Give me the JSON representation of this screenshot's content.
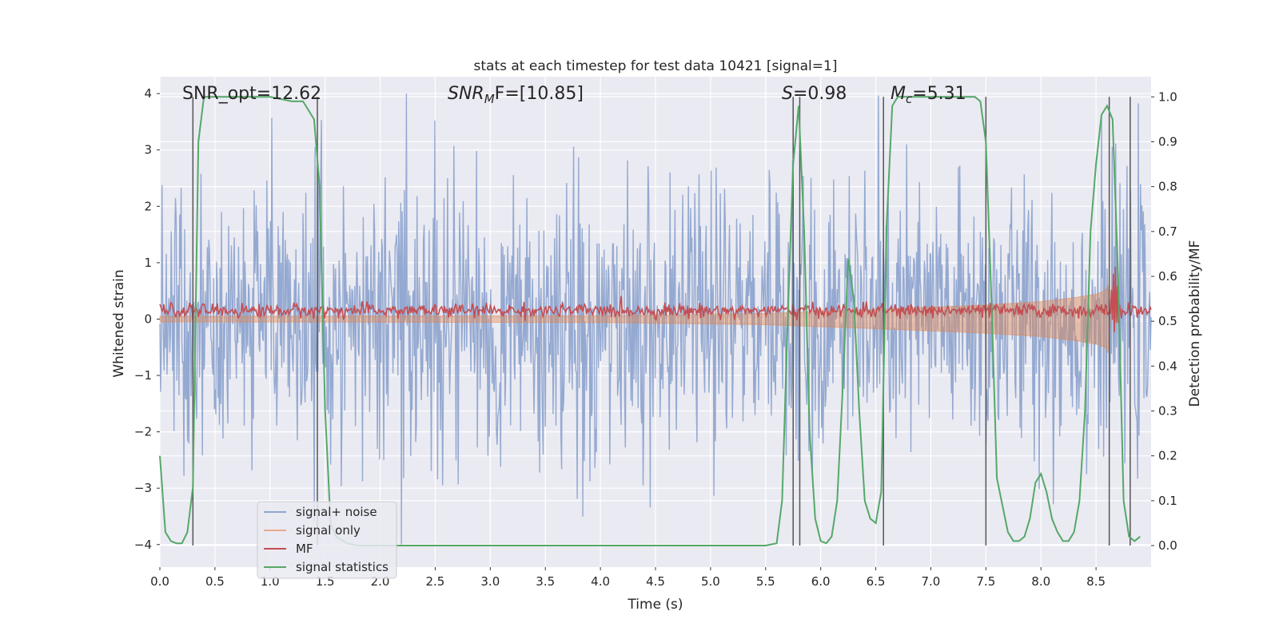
{
  "chart_data": {
    "type": "line",
    "title": "stats at each timestep for test data 10421 [signal=1]",
    "xlabel": "Time (s)",
    "ylabel": "Whitened strain",
    "ylabel_right": "Detection probability/MF",
    "xlim": [
      0.0,
      9.0
    ],
    "ylim": [
      -4.4,
      4.3
    ],
    "ylim_right": [
      -0.048,
      1.045
    ],
    "xticks": [
      "0.0",
      "0.5",
      "1.0",
      "1.5",
      "2.0",
      "2.5",
      "3.0",
      "3.5",
      "4.0",
      "4.5",
      "5.0",
      "5.5",
      "6.0",
      "6.5",
      "7.0",
      "7.5",
      "8.0",
      "8.5"
    ],
    "xtick_values": [
      0,
      0.5,
      1,
      1.5,
      2,
      2.5,
      3,
      3.5,
      4,
      4.5,
      5,
      5.5,
      6,
      6.5,
      7,
      7.5,
      8,
      8.5
    ],
    "yticks": [
      "−4",
      "−3",
      "−2",
      "−1",
      "0",
      "1",
      "2",
      "3",
      "4"
    ],
    "ytick_values": [
      -4,
      -3,
      -2,
      -1,
      0,
      1,
      2,
      3,
      4
    ],
    "yticks_right": [
      "0.0",
      "0.1",
      "0.2",
      "0.3",
      "0.4",
      "0.5",
      "0.6",
      "0.7",
      "0.8",
      "0.9",
      "1.0"
    ],
    "ytick_right_values": [
      0,
      0.1,
      0.2,
      0.3,
      0.4,
      0.5,
      0.6,
      0.7,
      0.8,
      0.9,
      1.0
    ],
    "annotations": {
      "snr_opt": "SNR_opt=12.62",
      "snr_mf_base": "SNR",
      "snr_mf_sub": "M",
      "snr_mf_tail": "F=[10.85]",
      "s_base": "S",
      "s_tail": "=0.98",
      "mc_base": "M",
      "mc_sub": "c",
      "mc_tail": "=5.31"
    },
    "vertical_lines": [
      0.3,
      1.43,
      5.75,
      5.81,
      6.57,
      7.5,
      8.62,
      8.81
    ],
    "legend": {
      "placement": "lower-left",
      "entries": [
        "signal+ noise",
        "signal only",
        "MF",
        "signal statistics"
      ]
    },
    "noise_envelope": {
      "typical_abs": 1.6,
      "max_abs": 4.0,
      "samples": 1400
    },
    "signal_only_envelope": {
      "t": [
        0,
        4,
        5.5,
        6.5,
        7.5,
        8.0,
        8.3,
        8.5,
        8.6,
        8.62,
        8.63
      ],
      "amp": [
        0.05,
        0.06,
        0.1,
        0.17,
        0.25,
        0.31,
        0.38,
        0.44,
        0.52,
        0.7,
        0.0
      ]
    },
    "mf_baseline": 0.15,
    "mf_peak": {
      "t": 8.67,
      "value": 1.0
    },
    "series": [
      {
        "name": "signal statistics",
        "axis": "right",
        "t": [
          0.0,
          0.05,
          0.1,
          0.15,
          0.2,
          0.25,
          0.3,
          0.35,
          0.4,
          0.45,
          0.5,
          0.6,
          0.8,
          1.0,
          1.2,
          1.3,
          1.35,
          1.4,
          1.45,
          1.5,
          1.55,
          1.6,
          1.7,
          1.8,
          2.0,
          3.0,
          4.0,
          5.0,
          5.5,
          5.6,
          5.65,
          5.7,
          5.75,
          5.8,
          5.85,
          5.9,
          5.95,
          6.0,
          6.05,
          6.1,
          6.15,
          6.2,
          6.25,
          6.3,
          6.35,
          6.4,
          6.45,
          6.5,
          6.55,
          6.6,
          6.65,
          6.7,
          6.75,
          6.8,
          7.0,
          7.2,
          7.4,
          7.45,
          7.5,
          7.55,
          7.6,
          7.7,
          7.75,
          7.8,
          7.85,
          7.9,
          7.95,
          8.0,
          8.05,
          8.1,
          8.15,
          8.2,
          8.25,
          8.3,
          8.35,
          8.4,
          8.45,
          8.5,
          8.55,
          8.6,
          8.65,
          8.7,
          8.75,
          8.8,
          8.85,
          8.9
        ],
        "values": [
          0.2,
          0.03,
          0.01,
          0.005,
          0.005,
          0.03,
          0.13,
          0.9,
          1.0,
          1.0,
          1.0,
          1.0,
          1.0,
          1.0,
          0.99,
          0.99,
          0.97,
          0.95,
          0.8,
          0.3,
          0.05,
          0.02,
          0.005,
          0.0,
          0.0,
          0.0,
          0.0,
          0.0,
          0.0,
          0.005,
          0.1,
          0.5,
          0.85,
          0.98,
          0.7,
          0.25,
          0.06,
          0.01,
          0.005,
          0.02,
          0.1,
          0.35,
          0.64,
          0.55,
          0.3,
          0.1,
          0.06,
          0.05,
          0.12,
          0.72,
          0.98,
          1.0,
          1.0,
          1.0,
          1.0,
          1.0,
          1.0,
          0.99,
          0.9,
          0.55,
          0.15,
          0.03,
          0.01,
          0.01,
          0.02,
          0.06,
          0.14,
          0.16,
          0.12,
          0.06,
          0.03,
          0.01,
          0.01,
          0.03,
          0.1,
          0.3,
          0.7,
          0.85,
          0.96,
          0.98,
          0.95,
          0.6,
          0.1,
          0.02,
          0.01,
          0.02
        ]
      }
    ],
    "colors": {
      "axes_bg": "#EAEAF2",
      "grid": "#FFFFFF",
      "noise": "#8FA5CF",
      "signal_only": "#DD8452",
      "mf": "#C44E52",
      "stats": "#55A868",
      "vline": "#555555"
    }
  }
}
